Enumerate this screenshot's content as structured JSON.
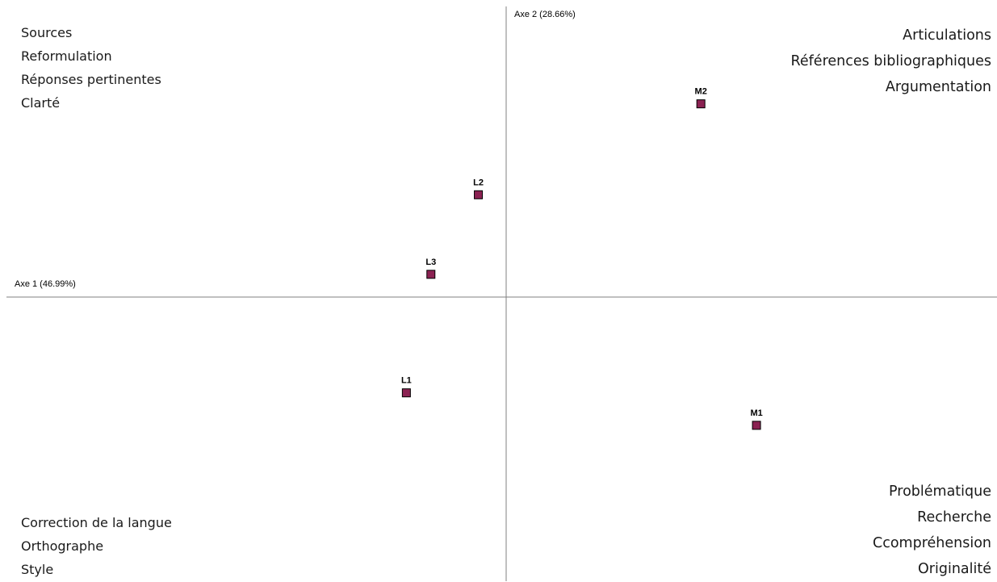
{
  "chart_data": {
    "type": "scatter",
    "xlabel": "Axe 1 (46.99%)",
    "ylabel": "Axe 2 (28.66%)",
    "xlim": [
      -3.0,
      3.0
    ],
    "ylim": [
      -1.75,
      1.75
    ],
    "points": [
      {
        "label": "M2",
        "x": 1.19,
        "y": 1.19
      },
      {
        "label": "L2",
        "x": -0.17,
        "y": 0.63
      },
      {
        "label": "L3",
        "x": -0.46,
        "y": 0.14
      },
      {
        "label": "L1",
        "x": -0.61,
        "y": -0.59
      },
      {
        "label": "M1",
        "x": 1.53,
        "y": -0.79
      }
    ],
    "marker_color": "#8b2252",
    "marker_edge": "#000000",
    "axis_color": "#808080"
  },
  "quadrant_labels": {
    "top_left": [
      "Sources",
      "Reformulation",
      "Réponses pertinentes",
      "Clarté"
    ],
    "top_right": [
      "Articulations",
      "Références bibliographiques",
      "Argumentation"
    ],
    "bottom_left": [
      "Correction de la langue",
      "Orthographe",
      "Style"
    ],
    "bottom_right": [
      "Problématique",
      "Recherche",
      "Ccompréhension",
      "Originalité"
    ]
  }
}
